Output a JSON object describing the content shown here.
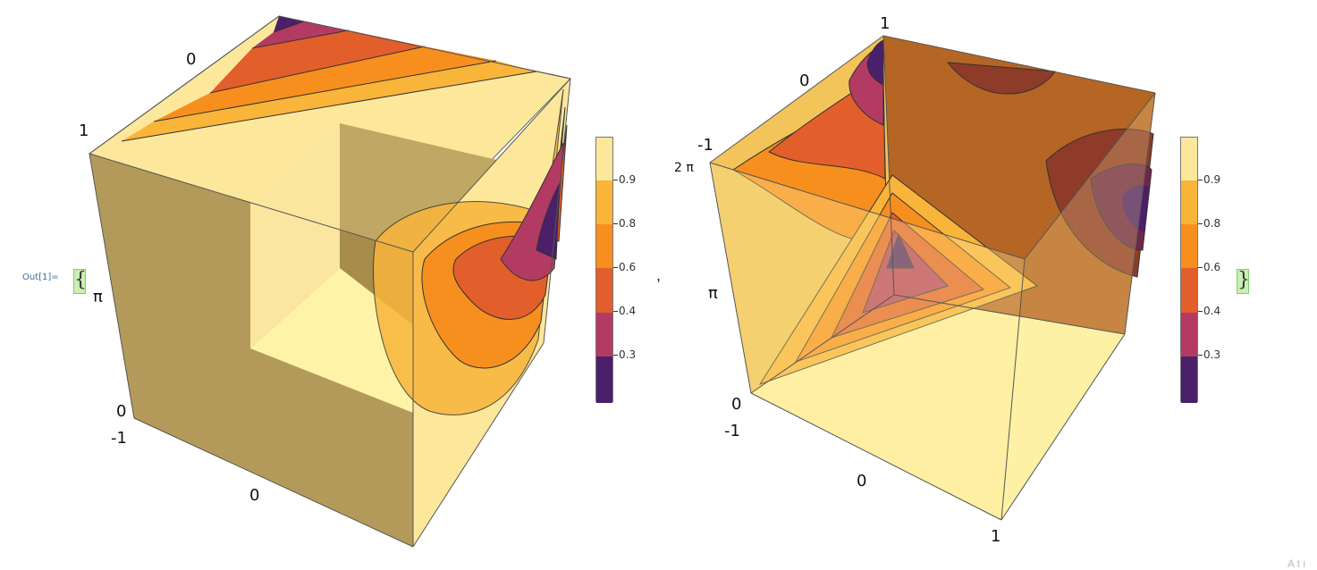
{
  "output": {
    "label": "Out[1]=",
    "open_brace": "{",
    "close_brace": "}",
    "separator": ","
  },
  "palette": {
    "c1": "#4b1f6a",
    "c2": "#b33b63",
    "c3": "#e25e2a",
    "c4": "#f78f1e",
    "c5": "#f9b43a",
    "c6": "#fde79a",
    "box_side": "#b49a5a"
  },
  "legend": {
    "ticks": [
      "0.3",
      "0.4",
      "0.6",
      "0.8",
      "0.9"
    ]
  },
  "plots": [
    {
      "ticks": {
        "top_left": "0",
        "top_corner": "1",
        "left_mid": "π",
        "left_bottom": "0",
        "bottom_left": "-1",
        "bottom_mid": "0"
      }
    },
    {
      "ticks": {
        "top": "1",
        "top_left": "0",
        "left_top": "-1",
        "left_upper": "2 π",
        "left_mid": "π",
        "left_bottom": "0",
        "bottom_left": "-1",
        "bottom_mid": "0",
        "bottom_right": "1"
      }
    }
  ],
  "watermark": "A t i"
}
